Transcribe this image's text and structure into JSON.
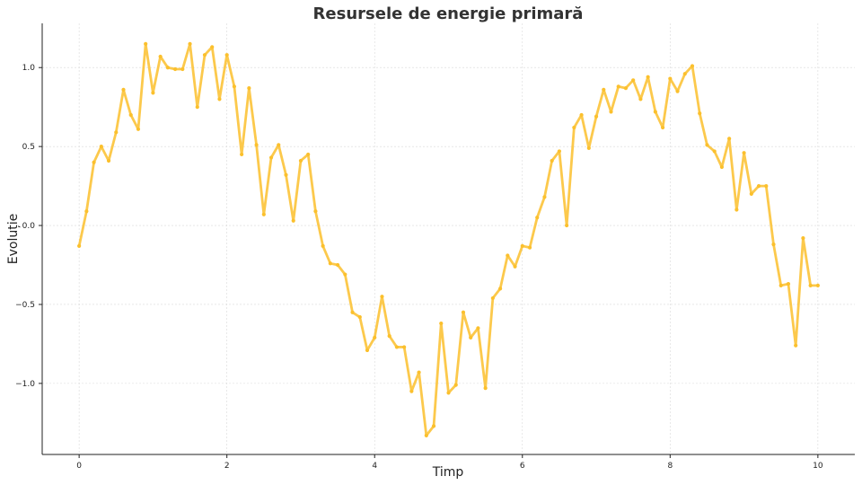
{
  "chart_data": {
    "type": "line",
    "title": "Resursele de energie primară",
    "xlabel": "Timp",
    "ylabel": "Evoluție",
    "xlim": [
      -0.5,
      10.5
    ],
    "ylim": [
      -1.45,
      1.28
    ],
    "xticks": [
      0,
      2,
      4,
      6,
      8,
      10
    ],
    "yticks": [
      -1.0,
      -0.5,
      0.0,
      0.5,
      1.0
    ],
    "xtick_labels": [
      "0",
      "2",
      "4",
      "6",
      "8",
      "10"
    ],
    "ytick_labels": [
      "−1.0",
      "−0.5",
      "0.0",
      "0.5",
      "1.0"
    ],
    "grid": true,
    "legend": "none",
    "series": [
      {
        "color": "#FBC02D",
        "x": [
          0.0,
          0.1,
          0.2,
          0.3,
          0.4,
          0.5,
          0.6,
          0.7,
          0.8,
          0.9,
          1.0,
          1.1,
          1.2,
          1.3,
          1.4,
          1.5,
          1.6,
          1.7,
          1.8,
          1.9,
          2.0,
          2.1,
          2.2,
          2.3,
          2.4,
          2.5,
          2.6,
          2.7,
          2.8,
          2.9,
          3.0,
          3.1,
          3.2,
          3.3,
          3.4,
          3.5,
          3.6,
          3.7,
          3.8,
          3.9,
          4.0,
          4.1,
          4.2,
          4.3,
          4.4,
          4.5,
          4.6,
          4.7,
          4.8,
          4.9,
          5.0,
          5.1,
          5.2,
          5.3,
          5.4,
          5.5,
          5.6,
          5.7,
          5.8,
          5.9,
          6.0,
          6.1,
          6.2,
          6.3,
          6.4,
          6.5,
          6.6,
          6.7,
          6.8,
          6.9,
          7.0,
          7.1,
          7.2,
          7.3,
          7.4,
          7.5,
          7.6,
          7.7,
          7.8,
          7.9,
          8.0,
          8.1,
          8.2,
          8.3,
          8.4,
          8.5,
          8.6,
          8.7,
          8.8,
          8.9,
          9.0,
          9.1,
          9.2,
          9.3,
          9.4,
          9.5,
          9.6,
          9.7,
          9.8,
          9.9,
          10.0
        ],
        "y": [
          -0.13,
          0.09,
          0.4,
          0.5,
          0.41,
          0.59,
          0.86,
          0.7,
          0.61,
          1.15,
          0.84,
          1.07,
          1.0,
          0.99,
          0.99,
          1.15,
          0.75,
          1.08,
          1.13,
          0.8,
          1.08,
          0.88,
          0.45,
          0.87,
          0.51,
          0.07,
          0.43,
          0.51,
          0.32,
          0.03,
          0.41,
          0.45,
          0.09,
          -0.13,
          -0.24,
          -0.25,
          -0.31,
          -0.55,
          -0.58,
          -0.79,
          -0.71,
          -0.45,
          -0.7,
          -0.77,
          -0.77,
          -1.05,
          -0.93,
          -1.33,
          -1.27,
          -0.62,
          -1.06,
          -1.01,
          -0.55,
          -0.71,
          -0.65,
          -1.03,
          -0.46,
          -0.4,
          -0.19,
          -0.26,
          -0.13,
          -0.14,
          0.05,
          0.18,
          0.41,
          0.47,
          0.0,
          0.62,
          0.7,
          0.49,
          0.69,
          0.86,
          0.72,
          0.88,
          0.87,
          0.92,
          0.8,
          0.94,
          0.72,
          0.62,
          0.93,
          0.85,
          0.96,
          1.01,
          0.71,
          0.51,
          0.47,
          0.37,
          0.55,
          0.1,
          0.46,
          0.2,
          0.25,
          0.25,
          -0.12,
          -0.38,
          -0.37,
          -0.76,
          -0.08,
          -0.38,
          -0.38
        ]
      }
    ]
  }
}
